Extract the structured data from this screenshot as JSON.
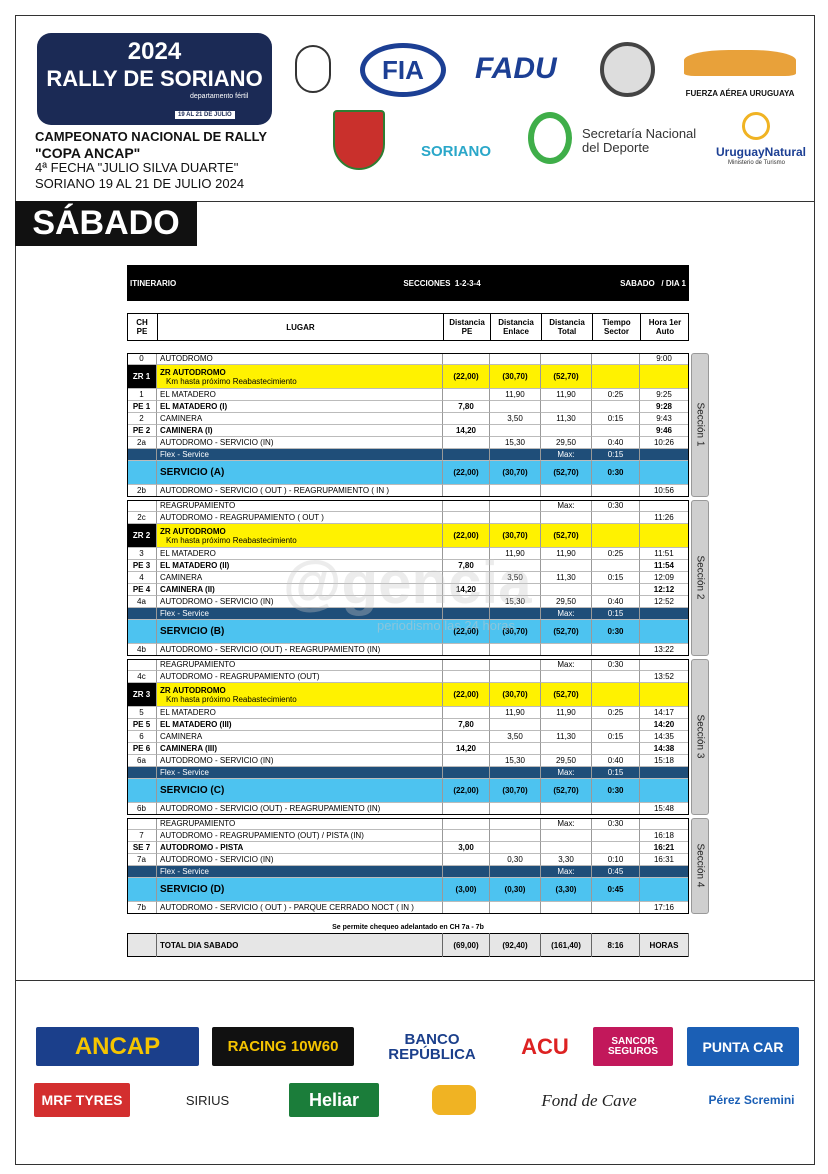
{
  "header": {
    "logo": {
      "year": "2024",
      "name": "RALLY DE SORIANO",
      "tagline": "departamento fértil",
      "dates": "19 AL 21 DE JULIO"
    },
    "event": [
      "CAMPEONATO NACIONAL DE RALLY",
      "\"COPA ANCAP\"",
      "4ª FECHA \"JULIO SILVA DUARTE\"",
      "SORIANO 19 AL 21 DE JULIO 2024"
    ],
    "partners": {
      "fia": "FIA",
      "fadu": "FADU",
      "faa": "FUERZA AÉREA URUGUAYA",
      "soriano": "SORIANO",
      "snd": [
        "Secretaría Nacional",
        "del Deporte"
      ],
      "un": "UruguayNatural",
      "mt": "Ministerio de Turismo"
    }
  },
  "day": "SÁBADO",
  "itinerary": {
    "title": "ITINERARIO",
    "sections_title": "SECCIONES  1-2-3-4",
    "day": "SABADO   / DIA 1",
    "columns": [
      [
        "CH",
        "PE"
      ],
      [
        "LUGAR"
      ],
      [
        "Distancia",
        "PE"
      ],
      [
        "Distancia",
        "Enlace"
      ],
      [
        "Distancia",
        "Total"
      ],
      [
        "Tiempo",
        "Sector"
      ],
      [
        "Hora 1er",
        "Auto"
      ]
    ],
    "sections": [
      {
        "label": "Sección 1",
        "rows": [
          {
            "ch": "0",
            "lugar": "AUTODROMO",
            "hora": "9:00"
          },
          {
            "ch": "ZR 1",
            "lugar": "ZR AUTODROMO",
            "sub": "Km hasta próximo Reabastecimiento",
            "pe": "(22,00)",
            "enlace": "(30,70)",
            "total": "(52,70)",
            "fill": "#fff200",
            "bold": true
          },
          {
            "ch": "1",
            "lugar": "EL MATADERO",
            "enlace": "11,90",
            "total": "11,90",
            "tiempo": "0:25",
            "hora": "9:25"
          },
          {
            "ch": "PE 1",
            "lugar": "EL MATADERO (I)",
            "pe": "7,80",
            "hora": "9:28",
            "bold": true
          },
          {
            "ch": "2",
            "lugar": "CAMINERA",
            "enlace": "3,50",
            "total": "11,30",
            "tiempo": "0:15",
            "hora": "9:43"
          },
          {
            "ch": "PE 2",
            "lugar": "CAMINERA (I)",
            "pe": "14,20",
            "hora": "9:46",
            "bold": true
          },
          {
            "ch": "2a",
            "lugar": "AUTODROMO - SERVICIO (IN)",
            "enlace": "15,30",
            "total": "29,50",
            "tiempo": "0:40",
            "hora": "10:26"
          },
          {
            "lugar": "Flex - Service",
            "total": "Max:",
            "tiempo": "0:15",
            "fill": "#1f4e79",
            "color": "#ffffff"
          },
          {
            "lugar": "SERVICIO (A)",
            "pe": "(22,00)",
            "enlace": "(30,70)",
            "total": "(52,70)",
            "tiempo": "0:30",
            "fill": "#4dc3f0",
            "bold": true,
            "emphasis": "large"
          },
          {
            "ch": "2b",
            "lugar": "AUTODROMO - SERVICIO ( OUT ) - REAGRUPAMIENTO ( IN )",
            "hora": "10:56"
          }
        ]
      },
      {
        "label": "Sección 2",
        "rows": [
          {
            "lugar": "REAGRUPAMIENTO",
            "total": "Max:",
            "tiempo": "0:30"
          },
          {
            "ch": "2c",
            "lugar": "AUTODROMO - REAGRUPAMIENTO ( OUT )",
            "hora": "11:26"
          },
          {
            "ch": "ZR 2",
            "lugar": "ZR AUTODROMO",
            "sub": "Km hasta próximo Reabastecimiento",
            "pe": "(22,00)",
            "enlace": "(30,70)",
            "total": "(52,70)",
            "fill": "#fff200",
            "bold": true
          },
          {
            "ch": "3",
            "lugar": "EL MATADERO",
            "enlace": "11,90",
            "total": "11,90",
            "tiempo": "0:25",
            "hora": "11:51"
          },
          {
            "ch": "PE 3",
            "lugar": "EL MATADERO (II)",
            "pe": "7,80",
            "hora": "11:54",
            "bold": true
          },
          {
            "ch": "4",
            "lugar": "CAMINERA",
            "enlace": "3,50",
            "total": "11,30",
            "tiempo": "0:15",
            "hora": "12:09"
          },
          {
            "ch": "PE 4",
            "lugar": "CAMINERA (II)",
            "pe": "14,20",
            "hora": "12:12",
            "bold": true
          },
          {
            "ch": "4a",
            "lugar": "AUTODROMO - SERVICIO (IN)",
            "enlace": "15,30",
            "total": "29,50",
            "tiempo": "0:40",
            "hora": "12:52"
          },
          {
            "lugar": "Flex - Service",
            "total": "Max:",
            "tiempo": "0:15",
            "fill": "#1f4e79",
            "color": "#ffffff"
          },
          {
            "lugar": "SERVICIO (B)",
            "pe": "(22,00)",
            "enlace": "(30,70)",
            "total": "(52,70)",
            "tiempo": "0:30",
            "fill": "#4dc3f0",
            "bold": true,
            "emphasis": "large"
          },
          {
            "ch": "4b",
            "lugar": "AUTODROMO - SERVICIO (OUT)  - REAGRUPAMIENTO (IN)",
            "hora": "13:22"
          }
        ]
      },
      {
        "label": "Sección 3",
        "rows": [
          {
            "lugar": "REAGRUPAMIENTO",
            "total": "Max:",
            "tiempo": "0:30"
          },
          {
            "ch": "4c",
            "lugar": "AUTODROMO - REAGRUPAMIENTO (OUT)",
            "hora": "13:52"
          },
          {
            "ch": "ZR 3",
            "lugar": "ZR AUTODROMO",
            "sub": "Km hasta próximo Reabastecimiento",
            "pe": "(22,00)",
            "enlace": "(30,70)",
            "total": "(52,70)",
            "fill": "#fff200",
            "bold": true
          },
          {
            "ch": "5",
            "lugar": "EL MATADERO",
            "enlace": "11,90",
            "total": "11,90",
            "tiempo": "0:25",
            "hora": "14:17"
          },
          {
            "ch": "PE 5",
            "lugar": "EL MATADERO (III)",
            "pe": "7,80",
            "hora": "14:20",
            "bold": true
          },
          {
            "ch": "6",
            "lugar": "CAMINERA",
            "enlace": "3,50",
            "total": "11,30",
            "tiempo": "0:15",
            "hora": "14:35"
          },
          {
            "ch": "PE 6",
            "lugar": "CAMINERA (III)",
            "pe": "14,20",
            "hora": "14:38",
            "bold": true
          },
          {
            "ch": "6a",
            "lugar": "AUTODROMO - SERVICIO (IN)",
            "enlace": "15,30",
            "total": "29,50",
            "tiempo": "0:40",
            "hora": "15:18"
          },
          {
            "lugar": "Flex - Service",
            "total": "Max:",
            "tiempo": "0:15",
            "fill": "#1f4e79",
            "color": "#ffffff"
          },
          {
            "lugar": "SERVICIO (C)",
            "pe": "(22,00)",
            "enlace": "(30,70)",
            "total": "(52,70)",
            "tiempo": "0:30",
            "fill": "#4dc3f0",
            "bold": true,
            "emphasis": "large"
          },
          {
            "ch": "6b",
            "lugar": "AUTODROMO - SERVICIO (OUT)  - REAGRUPAMIENTO (IN)",
            "hora": "15:48"
          }
        ]
      },
      {
        "label": "Sección 4",
        "rows": [
          {
            "lugar": "REAGRUPAMIENTO",
            "total": "Max:",
            "tiempo": "0:30"
          },
          {
            "ch": "7",
            "lugar": "AUTODROMO - REAGRUPAMIENTO (OUT) / PISTA (IN)",
            "hora": "16:18"
          },
          {
            "ch": "SE 7",
            "lugar": "AUTODROMO - PISTA",
            "pe": "3,00",
            "hora": "16:21",
            "bold": true
          },
          {
            "ch": "7a",
            "lugar": "AUTODROMO - SERVICIO (IN)",
            "enlace": "0,30",
            "total": "3,30",
            "tiempo": "0:10",
            "hora": "16:31"
          },
          {
            "lugar": "Flex - Service",
            "total": "Max:",
            "tiempo": "0:45",
            "fill": "#1f4e79",
            "color": "#ffffff"
          },
          {
            "lugar": "SERVICIO (D)",
            "pe": "(3,00)",
            "enlace": "(0,30)",
            "total": "(3,30)",
            "tiempo": "0:45",
            "fill": "#4dc3f0",
            "bold": true,
            "emphasis": "large"
          },
          {
            "ch": "7b",
            "lugar": "AUTODROMO - SERVICIO ( OUT ) - PARQUE CERRADO NOCT ( IN )",
            "hora": "17:16"
          }
        ]
      }
    ],
    "note": "Se permite chequeo adelantado en CH 7a - 7b",
    "total": {
      "lugar": "TOTAL DIA SABADO",
      "pe": "(69,00)",
      "enlace": "(92,40)",
      "total": "(161,40)",
      "tiempo": "8:16",
      "hora": "HORAS"
    }
  },
  "watermark": [
    "@gencia",
    "periodismo las 24 horas"
  ],
  "sponsors": [
    "ANCAP",
    "RACING 10W60",
    "BANCO REPÚBLICA",
    "ACU",
    "SANCOR SEGUROS",
    "PUNTA CAR",
    "MRF TYRES",
    "SIRIUS",
    "Heliar",
    "Fond de Cave",
    "Pérez Scremini"
  ]
}
